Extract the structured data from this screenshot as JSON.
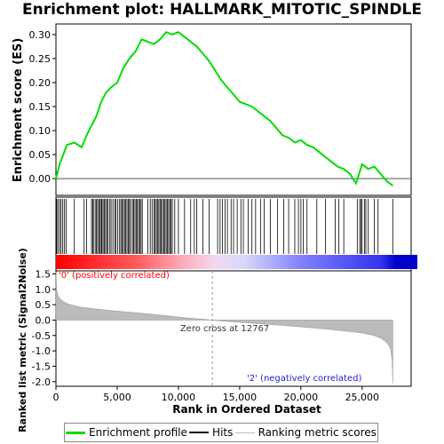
{
  "title": "Enrichment plot: HALLMARK_MITOTIC_SPINDLE",
  "legend": {
    "es": "Enrichment profile",
    "hits": "Hits",
    "rank": "Ranking metric scores"
  },
  "colors": {
    "es_line": "#00dd00",
    "hits": "#000000",
    "pos_label": "#ff0000",
    "neg_label": "#2222cc",
    "rank_fill": "#bbbbbb"
  },
  "chart_data": [
    {
      "type": "line",
      "name": "enrichment-score-panel",
      "ylabel": "Enrichment score (ES)",
      "xlim": [
        0,
        29000
      ],
      "ylim": [
        -0.035,
        0.322
      ],
      "yticks": [
        0.0,
        0.05,
        0.1,
        0.15,
        0.2,
        0.25,
        0.3
      ],
      "ytick_labels": [
        "0.00",
        "0.05",
        "0.10",
        "0.15",
        "0.20",
        "0.25",
        "0.30"
      ],
      "grid": false,
      "series": [
        {
          "name": "Enrichment profile",
          "x": [
            0,
            300,
            600,
            900,
            1500,
            2100,
            2500,
            2900,
            3300,
            3700,
            4100,
            4500,
            5000,
            5500,
            6000,
            6500,
            7000,
            7500,
            8000,
            8500,
            9000,
            9500,
            10000,
            10500,
            11000,
            11500,
            12000,
            12500,
            13000,
            13500,
            14000,
            14500,
            15000,
            15500,
            16000,
            16500,
            17000,
            17500,
            18000,
            18500,
            19000,
            19500,
            20000,
            20500,
            21000,
            21500,
            22000,
            22500,
            23000,
            23500,
            24000,
            24500,
            25000,
            25500,
            26000,
            26500,
            27000,
            27500
          ],
          "y": [
            0.0,
            0.03,
            0.05,
            0.07,
            0.075,
            0.065,
            0.09,
            0.11,
            0.13,
            0.16,
            0.18,
            0.19,
            0.2,
            0.23,
            0.25,
            0.265,
            0.29,
            0.285,
            0.28,
            0.29,
            0.305,
            0.3,
            0.305,
            0.295,
            0.285,
            0.275,
            0.26,
            0.245,
            0.225,
            0.205,
            0.19,
            0.175,
            0.16,
            0.155,
            0.15,
            0.14,
            0.13,
            0.12,
            0.105,
            0.09,
            0.085,
            0.075,
            0.08,
            0.07,
            0.065,
            0.055,
            0.045,
            0.035,
            0.025,
            0.02,
            0.01,
            -0.01,
            0.03,
            0.02,
            0.025,
            0.01,
            -0.005,
            -0.015
          ]
        }
      ]
    },
    {
      "type": "bar",
      "name": "hits-panel",
      "series": [
        {
          "name": "Hits",
          "x": [
            60,
            160,
            300,
            420,
            560,
            700,
            830,
            1500,
            2300,
            2500,
            2900,
            3000,
            3050,
            3200,
            3300,
            3400,
            3500,
            3600,
            3700,
            3750,
            3850,
            3950,
            4050,
            4150,
            4250,
            4400,
            4500,
            4650,
            4800,
            4900,
            5050,
            5200,
            5300,
            5400,
            5500,
            5600,
            5700,
            5800,
            5900,
            6000,
            6100,
            6250,
            6350,
            6450,
            6550,
            6650,
            6750,
            6850,
            6950,
            7050,
            7500,
            7700,
            7850,
            8000,
            8100,
            8200,
            8300,
            8400,
            8500,
            8600,
            8700,
            8800,
            8900,
            9000,
            9100,
            9200,
            9300,
            9400,
            9500,
            9700,
            10000,
            10500,
            11000,
            11300,
            11500,
            12000,
            12500,
            13200,
            13400,
            13600,
            13800,
            14000,
            14300,
            14500,
            14800,
            15100,
            15300,
            15700,
            16000,
            16300,
            16700,
            17000,
            17500,
            18100,
            18600,
            19000,
            19500,
            19800,
            20000,
            20200,
            20500,
            21300,
            22000,
            22800,
            23100,
            23500,
            24600,
            24800,
            24900,
            25000,
            25200,
            25300,
            25500,
            26000,
            26300,
            27500
          ]
        }
      ]
    },
    {
      "type": "area",
      "name": "ranked-list-panel",
      "ylabel": "Ranked list metric (Signal2Noise)",
      "xlabel": "Rank in Ordered Dataset",
      "xlim": [
        0,
        29000
      ],
      "ylim": [
        -2.15,
        1.6
      ],
      "xticks": [
        0,
        5000,
        10000,
        15000,
        20000,
        25000
      ],
      "xtick_labels": [
        "0",
        "5,000",
        "10,000",
        "15,000",
        "20,000",
        "25,000"
      ],
      "yticks": [
        1.5,
        1.0,
        0.5,
        0.0,
        -0.5,
        -1.0,
        -1.5,
        -2.0
      ],
      "ytick_labels": [
        "1.5",
        "1.0",
        "0.5",
        "0.0",
        "-0.5",
        "-1.0",
        "-1.5",
        "-2.0"
      ],
      "zero_cross": 12767,
      "annotations": {
        "zero_cross": "Zero cross at 12767",
        "positive": "'0' (positively correlated)",
        "negative": "'2' (negatively correlated)"
      },
      "series": [
        {
          "name": "Ranking metric scores",
          "x": [
            0,
            50,
            150,
            300,
            600,
            1000,
            2000,
            3000,
            4000,
            5000,
            6000,
            7000,
            8000,
            9000,
            10000,
            11000,
            12000,
            12767,
            14000,
            16000,
            18000,
            20000,
            22000,
            24000,
            25000,
            26000,
            26500,
            27000,
            27300,
            27450,
            27500
          ],
          "y": [
            1.55,
            1.0,
            0.8,
            0.7,
            0.6,
            0.52,
            0.42,
            0.37,
            0.33,
            0.29,
            0.26,
            0.22,
            0.18,
            0.14,
            0.1,
            0.06,
            0.03,
            0.0,
            -0.04,
            -0.1,
            -0.16,
            -0.22,
            -0.29,
            -0.37,
            -0.42,
            -0.5,
            -0.58,
            -0.72,
            -0.9,
            -1.3,
            -2.05
          ]
        }
      ]
    }
  ]
}
